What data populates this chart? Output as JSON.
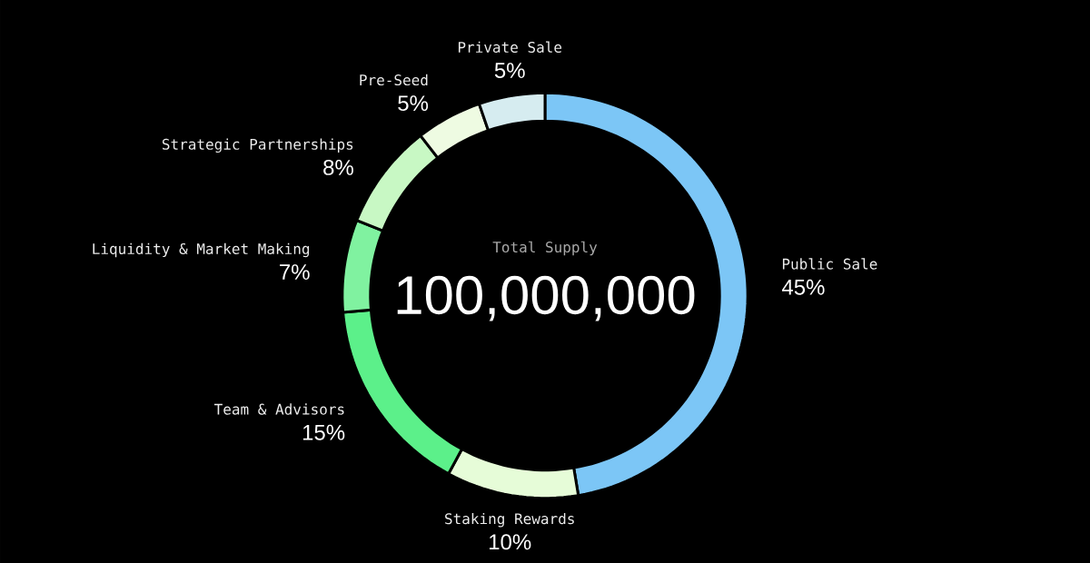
{
  "chart_data": {
    "type": "donut",
    "title": "Total Supply",
    "annotations": [
      "100,000,000"
    ],
    "categories": [
      "Public Sale",
      "Staking Rewards",
      "Team & Advisors",
      "Liquidity & Market Making",
      "Strategic Partnerships",
      "Pre-Seed",
      "Private Sale"
    ],
    "values": [
      45,
      10,
      15,
      7,
      8,
      5,
      5
    ],
    "value_labels": [
      "45%",
      "10%",
      "15%",
      "7%",
      "8%",
      "5%",
      "5%"
    ],
    "colors": [
      "#7cc6f6",
      "#e6fcd8",
      "#5cf08a",
      "#80f2a0",
      "#c8f8c4",
      "#eefbe2",
      "#d6ecf0"
    ]
  }
}
